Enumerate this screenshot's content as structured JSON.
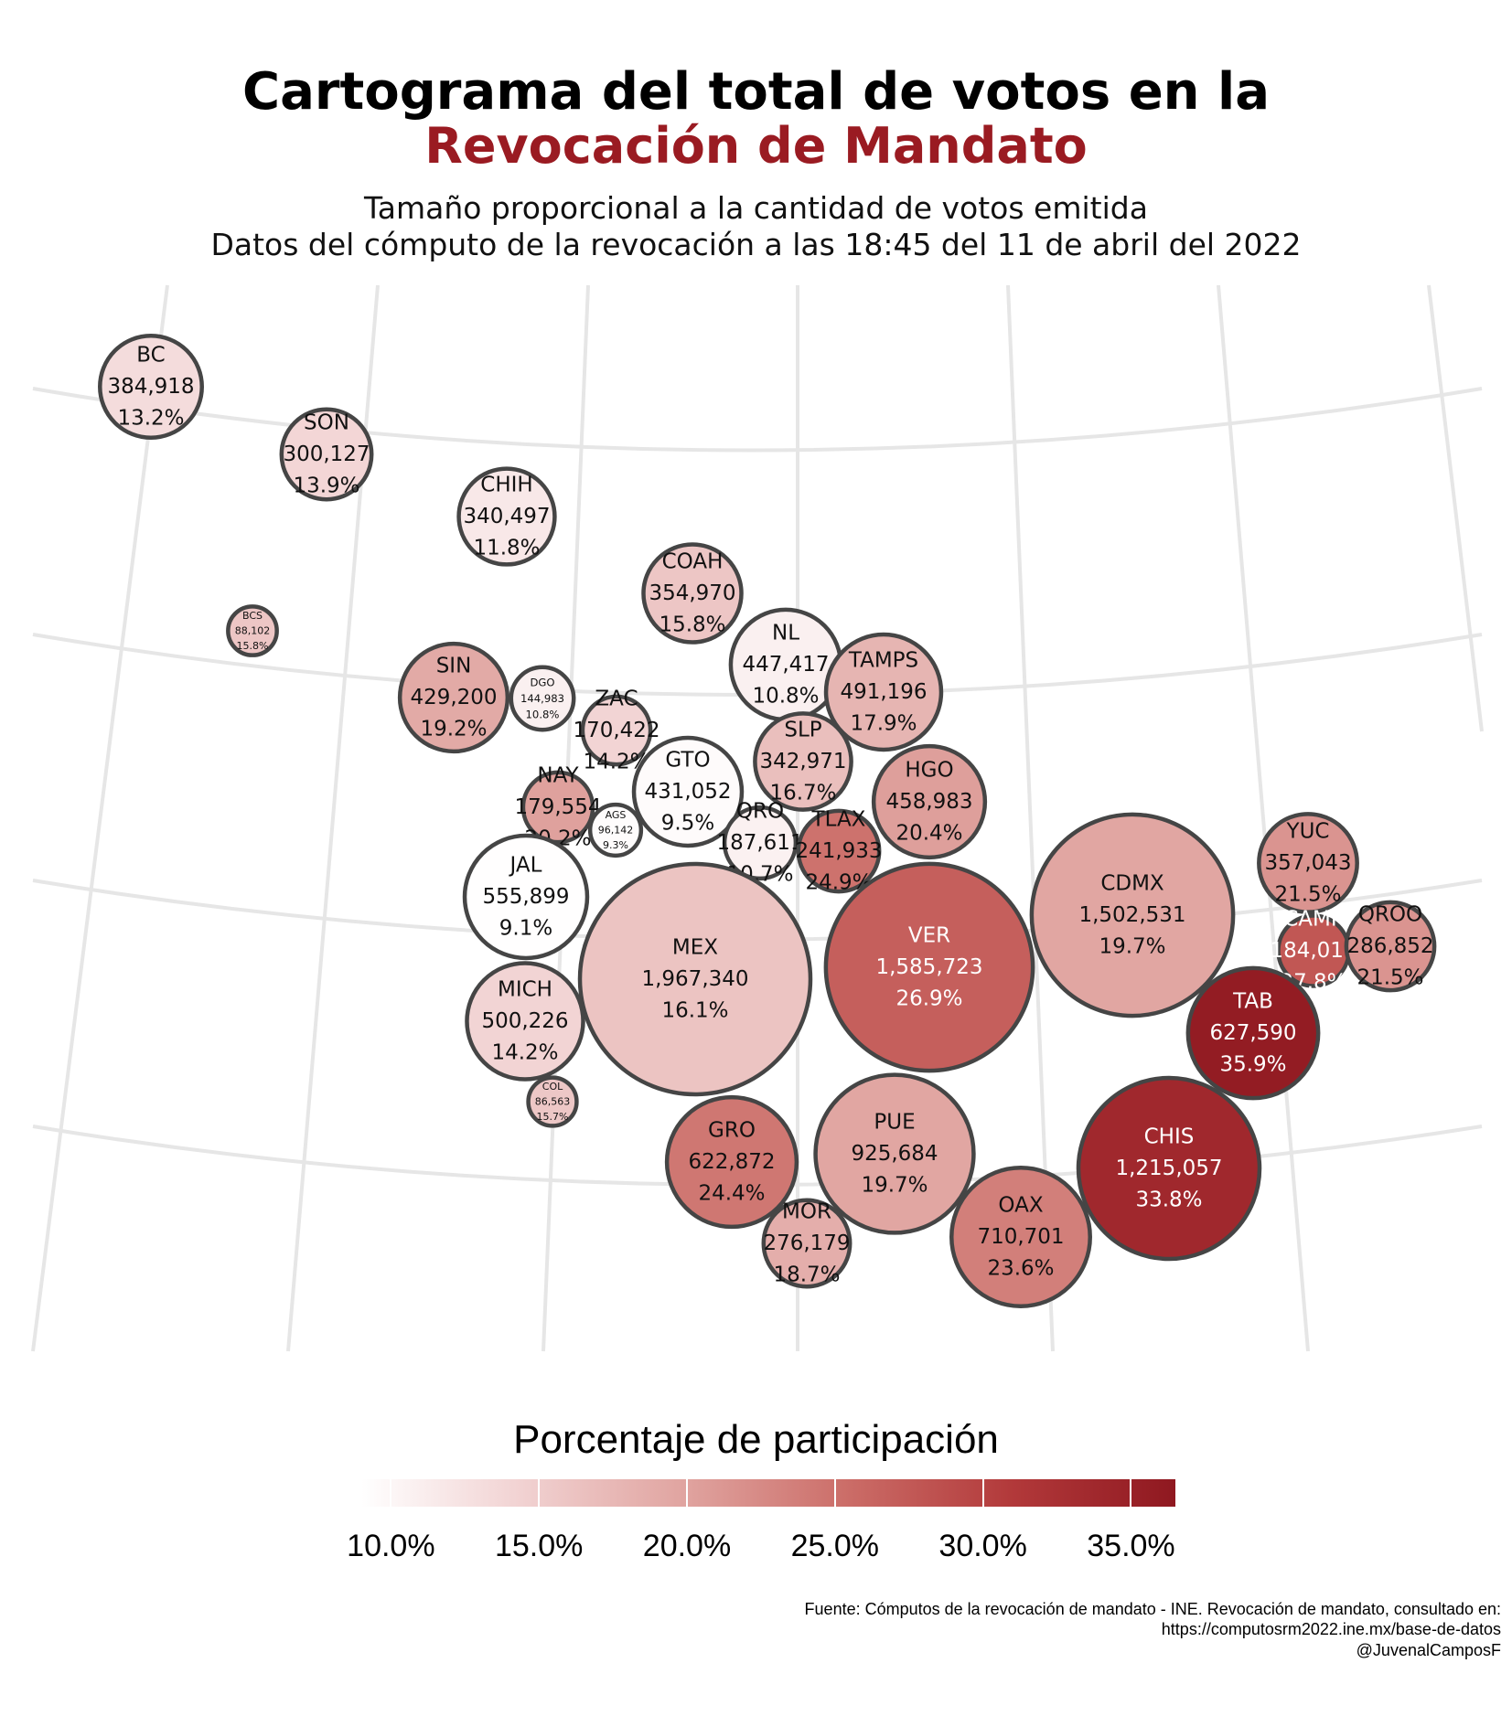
{
  "title_line1": "Cartograma del total de votos en la",
  "title_line2": "Revocación de Mandato",
  "subtitle_line1": "Tamaño proporcional a la cantidad de votos emitida",
  "subtitle_line2": "Datos del cómputo de la revocación a las 18:45 del 11 de abril del 2022",
  "legend": {
    "title": "Porcentaje de participación",
    "ticks": [
      "10.0%",
      "15.0%",
      "20.0%",
      "25.0%",
      "30.0%",
      "35.0%"
    ],
    "range": [
      9.0,
      36.5
    ],
    "colors": [
      "#ffffff",
      "#f1d1d1",
      "#e0a39f",
      "#cb6c67",
      "#b2393a",
      "#8f1820"
    ]
  },
  "footer": {
    "line1": "Fuente: Cómputos de la revocación de mandato - INE. Revocación de mandato, consultado en:",
    "line2": "https://computosrm2022.ine.mx/base-de-datos",
    "line3": "@JuvenalCamposF"
  },
  "chart_data": {
    "type": "bubble-cartogram",
    "size_variable": "votos",
    "color_variable": "porcentaje de participación",
    "grid": true,
    "legend_placement": "bottom",
    "states": [
      {
        "label": "BC",
        "votes": "384,918",
        "votes_n": 384918,
        "pct": "13.2%",
        "pct_n": 13.2
      },
      {
        "label": "SON",
        "votes": "300,127",
        "votes_n": 300127,
        "pct": "13.9%",
        "pct_n": 13.9
      },
      {
        "label": "CHIH",
        "votes": "340,497",
        "votes_n": 340497,
        "pct": "11.8%",
        "pct_n": 11.8
      },
      {
        "label": "COAH",
        "votes": "354,970",
        "votes_n": 354970,
        "pct": "15.8%",
        "pct_n": 15.8
      },
      {
        "label": "BCS",
        "votes": "88,102",
        "votes_n": 88102,
        "pct": "15.8%",
        "pct_n": 15.8
      },
      {
        "label": "NL",
        "votes": "447,417",
        "votes_n": 447417,
        "pct": "10.8%",
        "pct_n": 10.8
      },
      {
        "label": "TAMPS",
        "votes": "491,196",
        "votes_n": 491196,
        "pct": "17.9%",
        "pct_n": 17.9
      },
      {
        "label": "SIN",
        "votes": "429,200",
        "votes_n": 429200,
        "pct": "19.2%",
        "pct_n": 19.2
      },
      {
        "label": "DGO",
        "votes": "144,983",
        "votes_n": 144983,
        "pct": "10.8%",
        "pct_n": 10.8
      },
      {
        "label": "ZAC",
        "votes": "170,422",
        "votes_n": 170422,
        "pct": "14.2%",
        "pct_n": 14.2
      },
      {
        "label": "SLP",
        "votes": "342,971",
        "votes_n": 342971,
        "pct": "16.7%",
        "pct_n": 16.7
      },
      {
        "label": "GTO",
        "votes": "431,052",
        "votes_n": 431052,
        "pct": "9.5%",
        "pct_n": 9.5
      },
      {
        "label": "HGO",
        "votes": "458,983",
        "votes_n": 458983,
        "pct": "20.4%",
        "pct_n": 20.4
      },
      {
        "label": "NAY",
        "votes": "179,554",
        "votes_n": 179554,
        "pct": "20.2%",
        "pct_n": 20.2
      },
      {
        "label": "AGS",
        "votes": "96,142",
        "votes_n": 96142,
        "pct": "9.3%",
        "pct_n": 9.3
      },
      {
        "label": "QRO",
        "votes": "187,611",
        "votes_n": 187611,
        "pct": "10.7%",
        "pct_n": 10.7
      },
      {
        "label": "TLAX",
        "votes": "241,933",
        "votes_n": 241933,
        "pct": "24.9%",
        "pct_n": 24.9
      },
      {
        "label": "YUC",
        "votes": "357,043",
        "votes_n": 357043,
        "pct": "21.5%",
        "pct_n": 21.5
      },
      {
        "label": "JAL",
        "votes": "555,899",
        "votes_n": 555899,
        "pct": "9.1%",
        "pct_n": 9.1
      },
      {
        "label": "CDMX",
        "votes": "1,502,531",
        "votes_n": 1502531,
        "pct": "19.7%",
        "pct_n": 19.7
      },
      {
        "label": "MEX",
        "votes": "1,967,340",
        "votes_n": 1967340,
        "pct": "16.1%",
        "pct_n": 16.1
      },
      {
        "label": "VER",
        "votes": "1,585,723",
        "votes_n": 1585723,
        "pct": "26.9%",
        "pct_n": 26.9
      },
      {
        "label": "CAMP",
        "votes": "184,011",
        "votes_n": 184011,
        "pct": "27.8%",
        "pct_n": 27.8
      },
      {
        "label": "QROO",
        "votes": "286,852",
        "votes_n": 286852,
        "pct": "21.5%",
        "pct_n": 21.5
      },
      {
        "label": "MICH",
        "votes": "500,226",
        "votes_n": 500226,
        "pct": "14.2%",
        "pct_n": 14.2
      },
      {
        "label": "TAB",
        "votes": "627,590",
        "votes_n": 627590,
        "pct": "35.9%",
        "pct_n": 35.9
      },
      {
        "label": "COL",
        "votes": "86,563",
        "votes_n": 86563,
        "pct": "15.7%",
        "pct_n": 15.7
      },
      {
        "label": "GRO",
        "votes": "622,872",
        "votes_n": 622872,
        "pct": "24.4%",
        "pct_n": 24.4
      },
      {
        "label": "PUE",
        "votes": "925,684",
        "votes_n": 925684,
        "pct": "19.7%",
        "pct_n": 19.7
      },
      {
        "label": "CHIS",
        "votes": "1,215,057",
        "votes_n": 1215057,
        "pct": "33.8%",
        "pct_n": 33.8
      },
      {
        "label": "MOR",
        "votes": "276,179",
        "votes_n": 276179,
        "pct": "18.7%",
        "pct_n": 18.7
      },
      {
        "label": "OAX",
        "votes": "710,701",
        "votes_n": 710701,
        "pct": "23.6%",
        "pct_n": 23.6
      }
    ]
  }
}
